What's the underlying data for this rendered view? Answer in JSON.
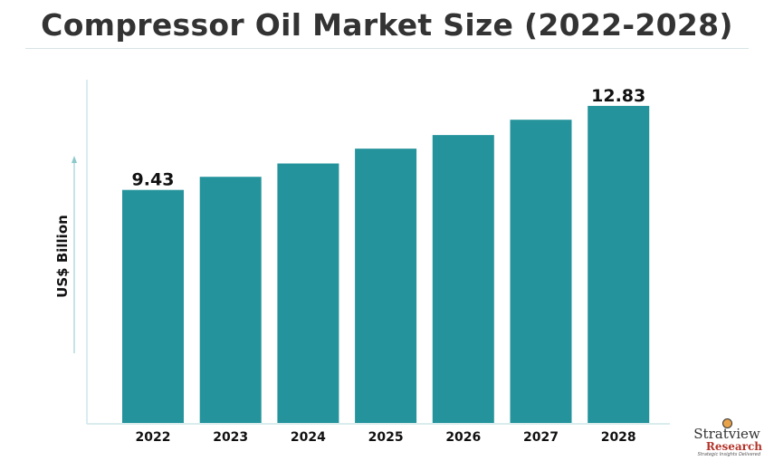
{
  "chart_data": {
    "type": "bar",
    "title": "Compressor Oil Market Size (2022-2028)",
    "ylabel": "US$ Billion",
    "xlabel": "",
    "categories": [
      "2022",
      "2023",
      "2024",
      "2025",
      "2026",
      "2027",
      "2028"
    ],
    "values": [
      9.43,
      9.96,
      10.5,
      11.1,
      11.65,
      12.27,
      12.83
    ],
    "data_labels": {
      "2022": "9.43",
      "2028": "12.83"
    },
    "ylim": [
      0,
      14
    ],
    "grid": false,
    "bar_color": "#24939c",
    "axis_color": "#cde6e8"
  },
  "logo": {
    "name": "Stratview",
    "sub": "Research",
    "tagline": "Strategic Insights Delivered"
  }
}
